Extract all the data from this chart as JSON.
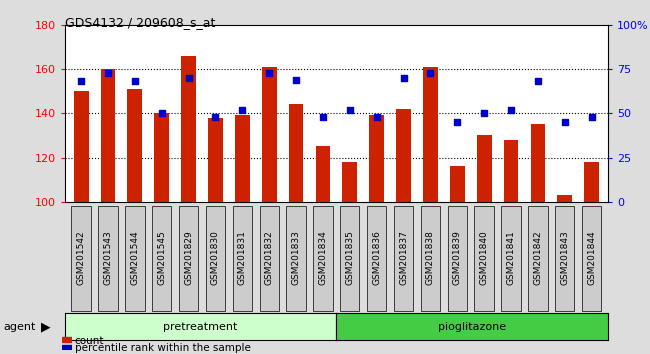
{
  "title": "GDS4132 / 209608_s_at",
  "samples": [
    "GSM201542",
    "GSM201543",
    "GSM201544",
    "GSM201545",
    "GSM201829",
    "GSM201830",
    "GSM201831",
    "GSM201832",
    "GSM201833",
    "GSM201834",
    "GSM201835",
    "GSM201836",
    "GSM201837",
    "GSM201838",
    "GSM201839",
    "GSM201840",
    "GSM201841",
    "GSM201842",
    "GSM201843",
    "GSM201844"
  ],
  "counts": [
    150,
    160,
    151,
    140,
    166,
    138,
    139,
    161,
    144,
    125,
    118,
    139,
    142,
    161,
    116,
    130,
    128,
    135,
    103,
    118
  ],
  "percentile": [
    68,
    73,
    68,
    50,
    70,
    48,
    52,
    73,
    69,
    48,
    52,
    48,
    70,
    73,
    45,
    50,
    52,
    68,
    45,
    48
  ],
  "bar_color": "#cc2200",
  "dot_color": "#0000cc",
  "ylim_left": [
    100,
    180
  ],
  "ylim_right": [
    0,
    100
  ],
  "yticks_left": [
    100,
    120,
    140,
    160,
    180
  ],
  "yticks_right": [
    0,
    25,
    50,
    75,
    100
  ],
  "ytick_labels_right": [
    "0",
    "25",
    "50",
    "75",
    "100%"
  ],
  "n_pretreatment": 10,
  "n_pioglitazone": 10,
  "agent_label": "agent",
  "pretreatment_label": "pretreatment",
  "pioglitazone_label": "pioglitazone",
  "legend_count": "count",
  "legend_percentile": "percentile rank within the sample",
  "bg_color": "#dddddd",
  "plot_bg_color": "#ffffff",
  "pretreatment_color": "#ccffcc",
  "pioglitazone_color": "#44cc44",
  "xtick_box_color": "#cccccc"
}
